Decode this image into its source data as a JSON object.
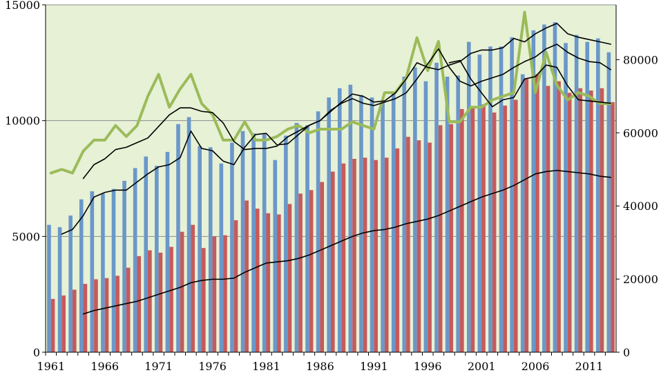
{
  "chart_data": {
    "type": "bar",
    "title": "",
    "xlabel": "",
    "ylabel": "",
    "y_left_lim": [
      0,
      15000
    ],
    "y_right_lim": [
      0,
      95000
    ],
    "y_left_ticks": [
      "0",
      "5000",
      "10000",
      "15000"
    ],
    "y_right_ticks": [
      "0",
      "20000",
      "40000",
      "60000",
      "80000"
    ],
    "x_tick_labels": [
      "1961",
      "1966",
      "1971",
      "1976",
      "1981",
      "1986",
      "1991",
      "1996",
      "2001",
      "2006",
      "2011"
    ],
    "years": [
      1961,
      1962,
      1963,
      1964,
      1965,
      1966,
      1967,
      1968,
      1969,
      1970,
      1971,
      1972,
      1973,
      1974,
      1975,
      1976,
      1977,
      1978,
      1979,
      1980,
      1981,
      1982,
      1983,
      1984,
      1985,
      1986,
      1987,
      1988,
      1989,
      1990,
      1991,
      1992,
      1993,
      1994,
      1995,
      1996,
      1997,
      1998,
      1999,
      2000,
      2001,
      2002,
      2003,
      2004,
      2005,
      2006,
      2007,
      2008,
      2009,
      2010,
      2011,
      2012,
      2013
    ],
    "grid": "horizontal lines at left-axis ticks",
    "plot_background": "#e6f1d6",
    "series": [
      {
        "type": "bar",
        "axis": "left",
        "color": "#6b97c9",
        "values": [
          5500,
          5400,
          5900,
          6600,
          6950,
          6850,
          7050,
          7400,
          7950,
          8450,
          8050,
          8650,
          9850,
          10150,
          8900,
          8850,
          8150,
          9050,
          9550,
          9450,
          9450,
          8300,
          9350,
          9900,
          9800,
          10400,
          11000,
          11400,
          11550,
          11100,
          11000,
          10800,
          11200,
          11900,
          12300,
          11700,
          12500,
          11900,
          11950,
          13400,
          12850,
          13200,
          13200,
          13600,
          12000,
          13900,
          14150,
          14250,
          13350,
          13700,
          13400,
          13550,
          12950
        ]
      },
      {
        "type": "bar",
        "axis": "left",
        "color": "#c65a5a",
        "values": [
          2300,
          2450,
          2700,
          2950,
          3150,
          3200,
          3300,
          3650,
          4150,
          4400,
          4300,
          4550,
          5200,
          5500,
          4500,
          5000,
          5050,
          5700,
          6550,
          6200,
          6000,
          5950,
          6400,
          6850,
          7000,
          7350,
          7800,
          8150,
          8350,
          8400,
          8300,
          8400,
          8800,
          9300,
          9150,
          9050,
          9800,
          9850,
          10500,
          10600,
          10700,
          10350,
          10650,
          10900,
          11800,
          12000,
          11500,
          11700,
          11200,
          11400,
          11300,
          11400,
          10800
        ]
      },
      {
        "type": "line",
        "axis": "right",
        "color": "#9bbb59",
        "values": [
          49000,
          50000,
          49000,
          55000,
          58000,
          58000,
          62000,
          59000,
          62000,
          70000,
          76000,
          67000,
          72000,
          76000,
          68000,
          65000,
          58000,
          58000,
          63000,
          58000,
          58000,
          59000,
          61000,
          62000,
          60000,
          61000,
          61000,
          61000,
          63000,
          62000,
          61000,
          71000,
          71000,
          75000,
          86000,
          77000,
          85000,
          63000,
          63000,
          67000,
          67000,
          69000,
          70000,
          71000,
          93000,
          71000,
          82000,
          73000,
          69000,
          71000,
          70000,
          68000,
          68000
        ]
      },
      {
        "type": "line",
        "axis": "left",
        "color": "#000000",
        "values": [
          null,
          null,
          null,
          1650,
          1800,
          1900,
          2000,
          2100,
          2200,
          2350,
          2500,
          2650,
          2800,
          3000,
          3100,
          3150,
          3150,
          3200,
          3450,
          3650,
          3850,
          3900,
          3950,
          4050,
          4200,
          4400,
          4600,
          4800,
          5000,
          5150,
          5250,
          5300,
          5400,
          5550,
          5650,
          5750,
          5900,
          6100,
          6300,
          6500,
          6700,
          6850,
          7000,
          7200,
          7450,
          7700,
          7800,
          7850,
          7800,
          7750,
          7700,
          7600,
          7550
        ]
      },
      {
        "type": "line",
        "axis": "left",
        "color": "#000000",
        "values": [
          null,
          5100,
          5300,
          5900,
          6700,
          6900,
          7000,
          7000,
          7350,
          7700,
          8000,
          8100,
          8400,
          9550,
          8800,
          8700,
          8250,
          8100,
          8850,
          9400,
          9450,
          8950,
          9000,
          9400,
          9800,
          10000,
          10400,
          10800,
          11150,
          11050,
          10800,
          10850,
          11200,
          11800,
          12500,
          12300,
          12200,
          12400,
          12550,
          12900,
          13050,
          13050,
          13150,
          13550,
          13400,
          13750,
          14000,
          14200,
          13750,
          13600,
          13500,
          13400,
          13300
        ]
      },
      {
        "type": "line",
        "axis": "left",
        "color": "#000000",
        "values": [
          null,
          null,
          null,
          7500,
          8100,
          8350,
          8750,
          8850,
          9050,
          9250,
          9750,
          10250,
          10550,
          10550,
          10400,
          10350,
          9900,
          9100,
          8750,
          8800,
          8800,
          8900,
          9300,
          9550,
          9800,
          10000,
          10450,
          10750,
          10950,
          10750,
          10650,
          10800,
          10950,
          11200,
          11800,
          12450,
          13100,
          12300,
          11700,
          11500,
          11700,
          11850,
          12000,
          12300,
          12550,
          12750,
          13100,
          13300,
          12950,
          12700,
          12550,
          12500,
          12200
        ]
      },
      {
        "type": "line",
        "axis": "left",
        "color": "#000000",
        "values": [
          null,
          null,
          null,
          null,
          null,
          null,
          null,
          null,
          null,
          null,
          null,
          null,
          null,
          null,
          null,
          null,
          null,
          null,
          null,
          null,
          null,
          null,
          null,
          null,
          null,
          null,
          null,
          null,
          null,
          null,
          null,
          null,
          null,
          null,
          null,
          null,
          null,
          12500,
          12600,
          11800,
          11200,
          10600,
          10900,
          11000,
          11800,
          11900,
          12400,
          12300,
          11500,
          10900,
          10850,
          10800,
          10750
        ]
      }
    ]
  }
}
